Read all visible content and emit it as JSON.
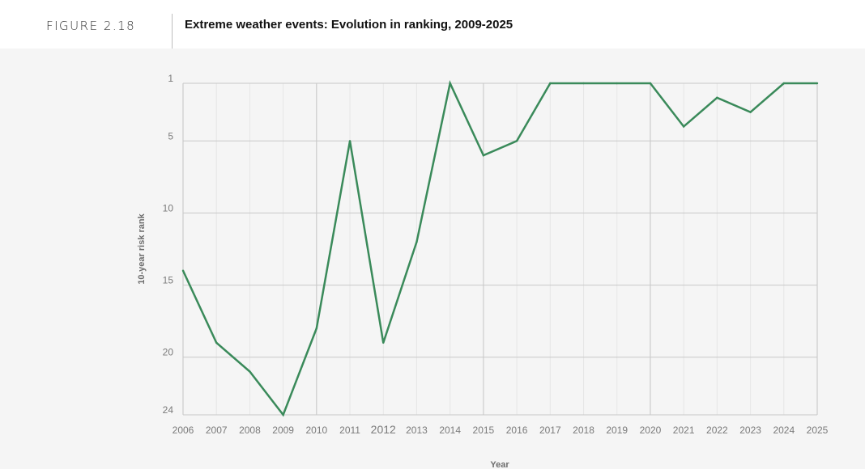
{
  "header": {
    "figure_label": "FIGURE 2.18",
    "title": "Extreme weather events: Evolution in ranking, 2009-2025"
  },
  "chart_data": {
    "type": "line",
    "title": "Extreme weather events: Evolution in ranking, 2009-2025",
    "xlabel": "Year",
    "ylabel": "10-year risk rank",
    "x": [
      2006,
      2007,
      2008,
      2009,
      2010,
      2011,
      2012,
      2013,
      2014,
      2015,
      2016,
      2017,
      2018,
      2019,
      2020,
      2021,
      2022,
      2023,
      2024,
      2025
    ],
    "x_tick_labels": [
      "2006",
      "2007",
      "2008",
      "2009",
      "2010",
      "2011",
      "2012",
      "2013",
      "2014",
      "2015",
      "2016",
      "2017",
      "2018",
      "2019",
      "2020",
      "2021",
      "2022",
      "2023",
      "2024",
      "2025"
    ],
    "y_ticks": [
      1,
      5,
      10,
      15,
      20,
      24
    ],
    "y_tick_labels": [
      "1",
      "5",
      "10",
      "15",
      "20",
      "24"
    ],
    "ylim": [
      1,
      24
    ],
    "y_inverted": true,
    "grid": true,
    "series": [
      {
        "name": "Extreme weather events",
        "color": "#3a8a5a",
        "values": [
          14,
          19,
          21,
          24,
          18,
          5,
          19,
          12,
          1,
          6,
          5,
          1,
          1,
          1,
          1,
          4,
          2,
          3,
          1,
          1
        ]
      }
    ]
  }
}
